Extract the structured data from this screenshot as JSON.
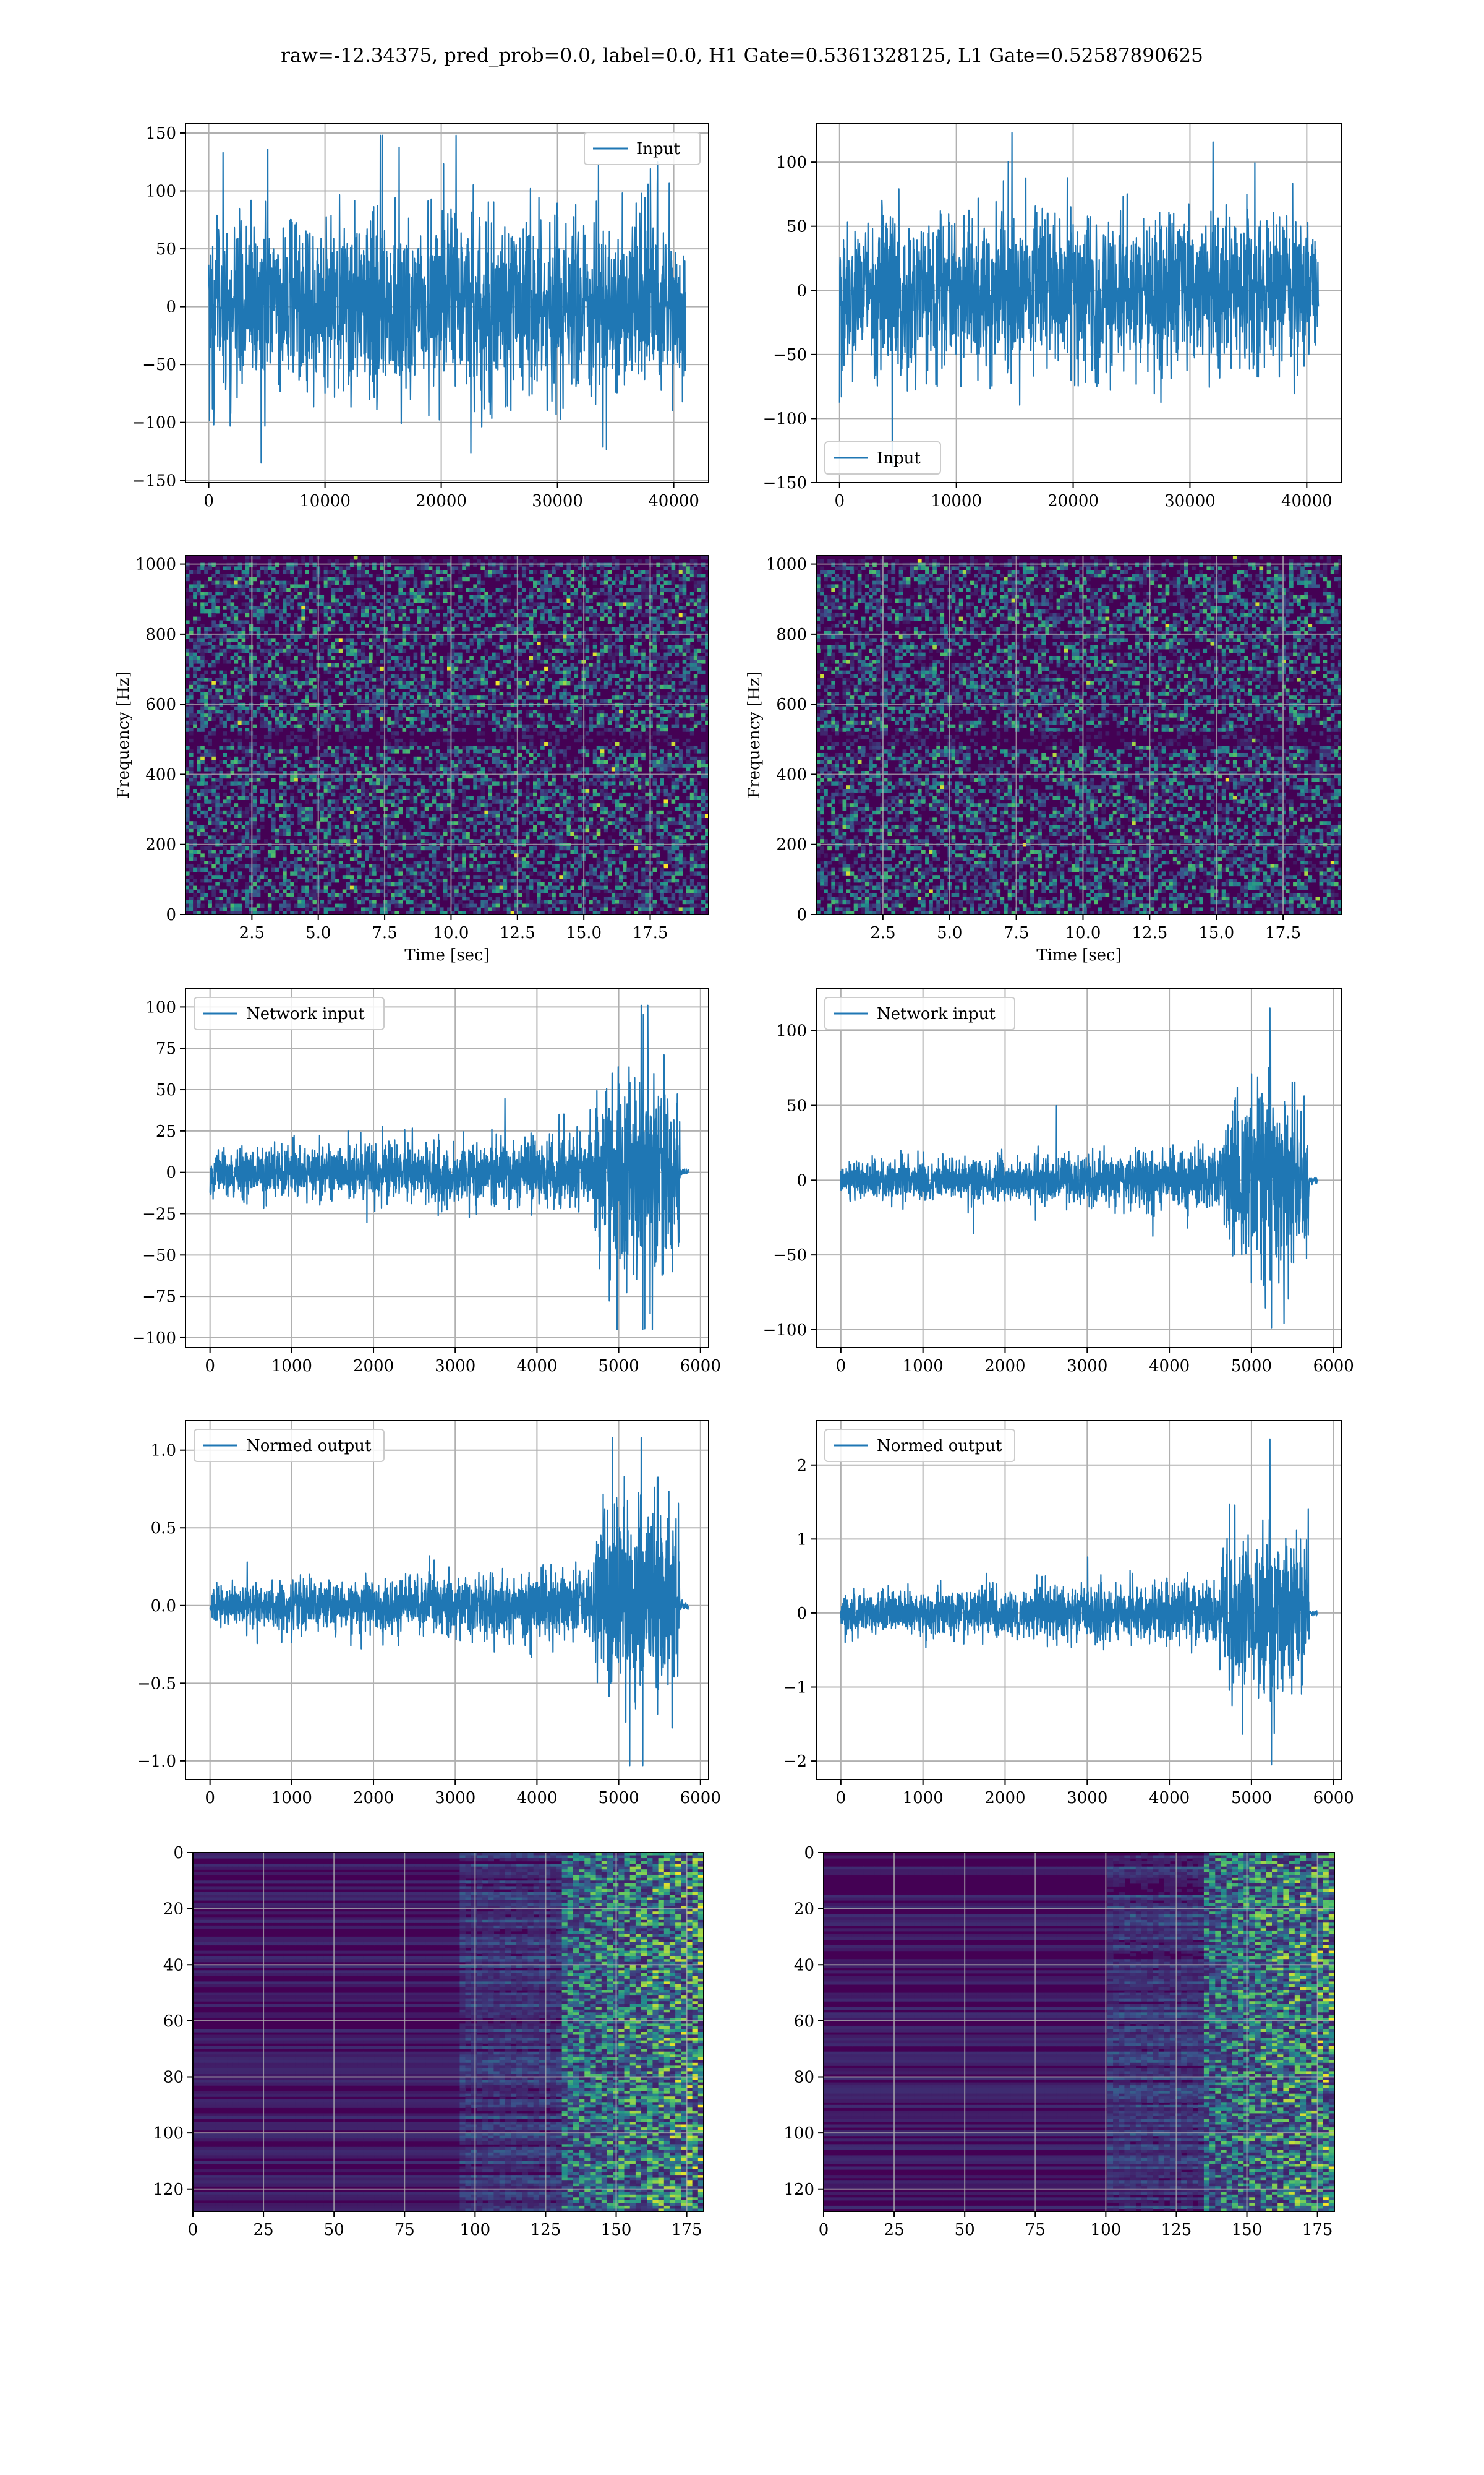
{
  "figure": {
    "suptitle": "raw=-12.34375, pred_prob=0.0, label=0.0, H1 Gate=0.5361328125, L1 Gate=0.52587890625",
    "colors": {
      "line": "#1f77b4",
      "grid": "#b0b0b0",
      "viridis_dark": "#440154",
      "viridis_bright": "#fde725"
    }
  },
  "chart_data": [
    {
      "id": "h1-input",
      "type": "line",
      "series": [
        {
          "name": "Input",
          "amplitude": 75,
          "peak": 148,
          "trough": -135
        }
      ],
      "xlim": [
        -2000,
        43000
      ],
      "ylim": [
        -152,
        158
      ],
      "xticks": [
        0,
        10000,
        20000,
        30000,
        40000
      ],
      "yticks": [
        -150,
        -100,
        -50,
        0,
        50,
        100,
        150
      ],
      "xlabel": "",
      "ylabel": "",
      "legend": "upper right",
      "grid": true
    },
    {
      "id": "l1-input",
      "type": "line",
      "series": [
        {
          "name": "Input",
          "amplitude": 62,
          "peak": 123,
          "trough": -137
        }
      ],
      "xlim": [
        -2000,
        43000
      ],
      "ylim": [
        -150,
        130
      ],
      "xticks": [
        0,
        10000,
        20000,
        30000,
        40000
      ],
      "yticks": [
        -150,
        -100,
        -50,
        0,
        50,
        100
      ],
      "xlabel": "",
      "ylabel": "",
      "legend": "lower left",
      "grid": true
    },
    {
      "id": "h1-spectrogram",
      "type": "heatmap",
      "colormap": "viridis",
      "xlim": [
        0,
        19.7
      ],
      "ylim": [
        0,
        1024
      ],
      "xticks": [
        2.5,
        5.0,
        7.5,
        10.0,
        12.5,
        15.0,
        17.5
      ],
      "yticks": [
        0,
        200,
        400,
        600,
        800,
        1000
      ],
      "xlabel": "Time [sec]",
      "ylabel": "Frequency [Hz]",
      "grid": true
    },
    {
      "id": "l1-spectrogram",
      "type": "heatmap",
      "colormap": "viridis",
      "xlim": [
        0,
        19.7
      ],
      "ylim": [
        0,
        1024
      ],
      "xticks": [
        2.5,
        5.0,
        7.5,
        10.0,
        12.5,
        15.0,
        17.5
      ],
      "yticks": [
        0,
        200,
        400,
        600,
        800,
        1000
      ],
      "xlabel": "Time [sec]",
      "ylabel": "Frequency [Hz]",
      "grid": true
    },
    {
      "id": "h1-network-input",
      "type": "line",
      "series": [
        {
          "name": "Network input",
          "amplitude_early": 18,
          "amplitude_burst": 75,
          "burst_start": 4700,
          "burst_end": 5750,
          "end": 5850,
          "peak": 101,
          "trough": -95
        }
      ],
      "xlim": [
        -300,
        6100
      ],
      "ylim": [
        -106,
        111
      ],
      "xticks": [
        0,
        1000,
        2000,
        3000,
        4000,
        5000,
        6000
      ],
      "yticks": [
        -100,
        -75,
        -50,
        -25,
        0,
        25,
        50,
        75,
        100
      ],
      "xlabel": "",
      "ylabel": "",
      "legend": "upper left",
      "grid": true
    },
    {
      "id": "l1-network-input",
      "type": "line",
      "series": [
        {
          "name": "Network input",
          "amplitude_early": 17,
          "amplitude_burst": 72,
          "burst_start": 4650,
          "burst_end": 5700,
          "end": 5800,
          "peak": 115,
          "trough": -99
        }
      ],
      "xlim": [
        -300,
        6100
      ],
      "ylim": [
        -112,
        128
      ],
      "xticks": [
        0,
        1000,
        2000,
        3000,
        4000,
        5000,
        6000
      ],
      "yticks": [
        -100,
        -50,
        0,
        50,
        100
      ],
      "xlabel": "",
      "ylabel": "",
      "legend": "upper left",
      "grid": true
    },
    {
      "id": "h1-normed-output",
      "type": "line",
      "series": [
        {
          "name": "Normed output",
          "amplitude_early": 0.18,
          "amplitude_burst": 0.75,
          "burst_start": 4700,
          "burst_end": 5750,
          "end": 5850,
          "peak": 1.08,
          "trough": -1.03
        }
      ],
      "xlim": [
        -300,
        6100
      ],
      "ylim": [
        -1.12,
        1.19
      ],
      "xticks": [
        0,
        1000,
        2000,
        3000,
        4000,
        5000,
        6000
      ],
      "yticks": [
        -1.0,
        -0.5,
        0.0,
        0.5,
        1.0
      ],
      "xlabel": "",
      "ylabel": "",
      "legend": "upper left",
      "grid": true
    },
    {
      "id": "l1-normed-output",
      "type": "line",
      "series": [
        {
          "name": "Normed output",
          "amplitude_early": 0.35,
          "amplitude_burst": 1.4,
          "burst_start": 4650,
          "burst_end": 5700,
          "end": 5800,
          "peak": 2.35,
          "trough": -2.05
        }
      ],
      "xlim": [
        -300,
        6100
      ],
      "ylim": [
        -2.25,
        2.6
      ],
      "xticks": [
        0,
        1000,
        2000,
        3000,
        4000,
        5000,
        6000
      ],
      "yticks": [
        -2,
        -1,
        0,
        1,
        2
      ],
      "xlabel": "",
      "ylabel": "",
      "legend": "upper left",
      "grid": true
    },
    {
      "id": "h1-feature-map",
      "type": "heatmap",
      "colormap": "viridis",
      "rows": 128,
      "cols": 181,
      "activity_onset_col": 115,
      "xlim": [
        0,
        181
      ],
      "ylim": [
        128,
        0
      ],
      "xticks": [
        0,
        25,
        50,
        75,
        100,
        125,
        150,
        175
      ],
      "yticks": [
        0,
        20,
        40,
        60,
        80,
        100,
        120
      ],
      "xlabel": "",
      "ylabel": "",
      "grid": true
    },
    {
      "id": "l1-feature-map",
      "type": "heatmap",
      "colormap": "viridis",
      "rows": 128,
      "cols": 181,
      "activity_onset_col": 120,
      "xlim": [
        0,
        181
      ],
      "ylim": [
        128,
        0
      ],
      "xticks": [
        0,
        25,
        50,
        75,
        100,
        125,
        150,
        175
      ],
      "yticks": [
        0,
        20,
        40,
        60,
        80,
        100,
        120
      ],
      "xlabel": "",
      "ylabel": "",
      "grid": true
    }
  ]
}
